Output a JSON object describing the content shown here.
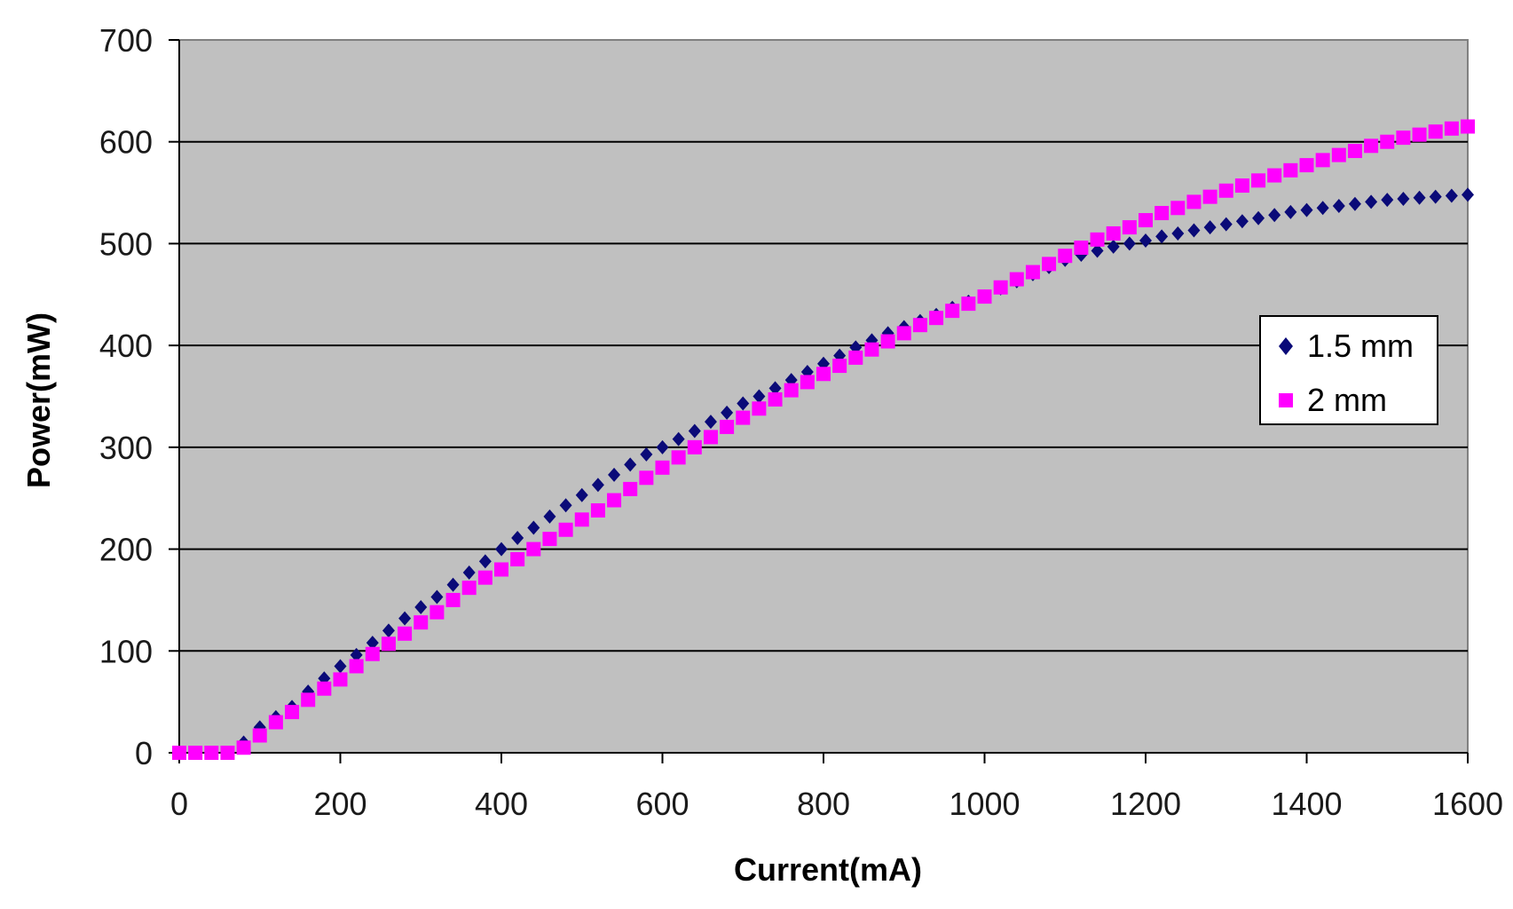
{
  "chart_data": {
    "type": "scatter",
    "xlabel": "Current(mA)",
    "ylabel": "Power(mW)",
    "xlim": [
      0,
      1600
    ],
    "ylim": [
      0,
      700
    ],
    "xticks": [
      0,
      200,
      400,
      600,
      800,
      1000,
      1200,
      1400,
      1600
    ],
    "yticks": [
      0,
      100,
      200,
      300,
      400,
      500,
      600,
      700
    ],
    "xtick_labels": [
      "0",
      "200",
      "400",
      "600",
      "800",
      "1000",
      "1200",
      "1400",
      "1600"
    ],
    "ytick_labels": [
      "0",
      "100",
      "200",
      "300",
      "400",
      "500",
      "600",
      "700"
    ],
    "grid": "horizontal",
    "plot_background": "#c0c0c0",
    "legend_position": "right",
    "series": [
      {
        "name": "1.5 mm",
        "color": "#0a0a78",
        "marker": "diamond",
        "x": [
          0,
          20,
          40,
          60,
          80,
          100,
          120,
          140,
          160,
          180,
          200,
          220,
          240,
          260,
          280,
          300,
          320,
          340,
          360,
          380,
          400,
          420,
          440,
          460,
          480,
          500,
          520,
          540,
          560,
          580,
          600,
          620,
          640,
          660,
          680,
          700,
          720,
          740,
          760,
          780,
          800,
          820,
          840,
          860,
          880,
          900,
          920,
          940,
          960,
          980,
          1000,
          1020,
          1040,
          1060,
          1080,
          1100,
          1120,
          1140,
          1160,
          1180,
          1200,
          1220,
          1240,
          1260,
          1280,
          1300,
          1320,
          1340,
          1360,
          1380,
          1400,
          1420,
          1440,
          1460,
          1480,
          1500,
          1520,
          1540,
          1560,
          1580,
          1600
        ],
        "y": [
          0,
          0,
          0,
          0,
          10,
          25,
          35,
          45,
          60,
          73,
          85,
          96,
          108,
          120,
          132,
          143,
          153,
          165,
          177,
          188,
          200,
          211,
          221,
          232,
          243,
          253,
          263,
          273,
          283,
          293,
          300,
          308,
          316,
          325,
          334,
          343,
          350,
          358,
          366,
          374,
          382,
          390,
          398,
          405,
          412,
          418,
          424,
          430,
          437,
          443,
          448,
          456,
          463,
          470,
          477,
          484,
          489,
          493,
          497,
          500,
          503,
          507,
          510,
          513,
          516,
          519,
          522,
          525,
          528,
          531,
          533,
          535,
          537,
          539,
          541,
          543,
          544,
          545,
          546,
          547,
          548
        ]
      },
      {
        "name": "2 mm",
        "color": "#ff00ff",
        "marker": "square",
        "x": [
          0,
          20,
          40,
          60,
          80,
          100,
          120,
          140,
          160,
          180,
          200,
          220,
          240,
          260,
          280,
          300,
          320,
          340,
          360,
          380,
          400,
          420,
          440,
          460,
          480,
          500,
          520,
          540,
          560,
          580,
          600,
          620,
          640,
          660,
          680,
          700,
          720,
          740,
          760,
          780,
          800,
          820,
          840,
          860,
          880,
          900,
          920,
          940,
          960,
          980,
          1000,
          1020,
          1040,
          1060,
          1080,
          1100,
          1120,
          1140,
          1160,
          1180,
          1200,
          1220,
          1240,
          1260,
          1280,
          1300,
          1320,
          1340,
          1360,
          1380,
          1400,
          1420,
          1440,
          1460,
          1480,
          1500,
          1520,
          1540,
          1560,
          1580,
          1600
        ],
        "y": [
          0,
          0,
          0,
          0,
          5,
          17,
          30,
          40,
          52,
          63,
          72,
          85,
          97,
          107,
          117,
          128,
          138,
          150,
          162,
          172,
          180,
          190,
          200,
          210,
          219,
          229,
          238,
          248,
          259,
          270,
          280,
          290,
          300,
          310,
          320,
          329,
          338,
          347,
          356,
          364,
          372,
          380,
          388,
          396,
          404,
          412,
          420,
          427,
          434,
          441,
          448,
          457,
          465,
          472,
          480,
          488,
          496,
          504,
          510,
          516,
          523,
          530,
          535,
          541,
          546,
          552,
          557,
          562,
          567,
          572,
          577,
          582,
          587,
          591,
          596,
          600,
          604,
          607,
          610,
          613,
          615
        ]
      }
    ]
  }
}
